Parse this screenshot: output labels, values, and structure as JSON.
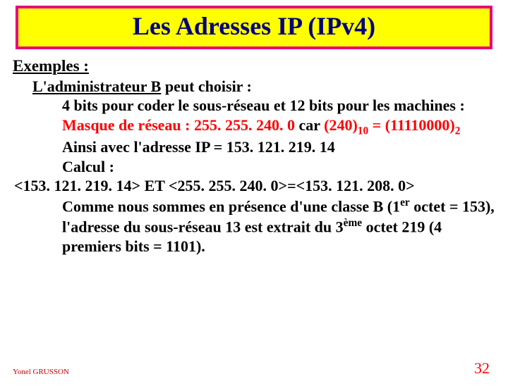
{
  "colors": {
    "title_bg": "#ffff00",
    "title_border": "#e6007e",
    "title_text": "#000080",
    "red": "#ff0000",
    "author": "#cc0000",
    "pagenum": "#ff0000"
  },
  "title": "Les Adresses IP (IPv4)",
  "exemples_label": "Exemples :",
  "admin": {
    "underlined": "L'administrateur B",
    "rest": " peut choisir :"
  },
  "p1": {
    "a": "4 bits pour coder le sous-réseau et 12 bits pour les machines : ",
    "red1": "Masque de réseau : 255. 255. 240. 0",
    "b": " car ",
    "red2_open": "(240)",
    "red2_sub": "10",
    "red2_mid": " = (11110000)",
    "red2_sub2": "2"
  },
  "p2": "Ainsi avec l'adresse IP = 153. 121. 219. 14",
  "p3": "Calcul :",
  "calc": "<153. 121. 219. 14> ET <255. 255. 240. 0>=<153. 121. 208. 0>",
  "p4": {
    "a": "Comme nous sommes en présence d'une classe B (1",
    "sup1": "er",
    "b": " octet = 153), l'adresse du sous-réseau 13 est extrait du 3",
    "sup2": "ème",
    "c": " octet 219 (4 premiers bits = 1101)."
  },
  "author": "Yonel GRUSSON",
  "page": "32"
}
